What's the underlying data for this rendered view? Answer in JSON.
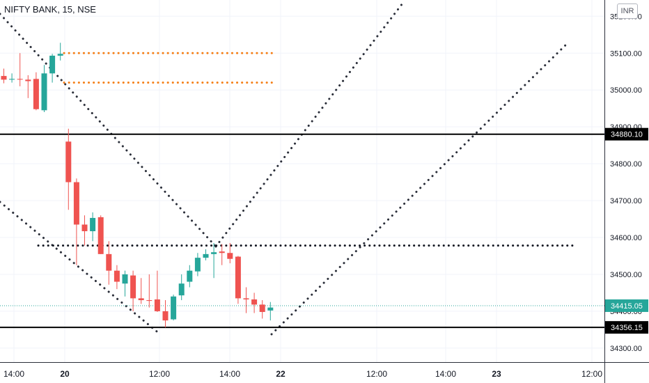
{
  "symbol_title": "NIFTY BANK, 15, NSE",
  "currency": "INR",
  "chart_data": {
    "type": "candlestick",
    "title": "NIFTY BANK, 15, NSE",
    "y_ticks": [
      34300,
      34400,
      34500,
      34600,
      34700,
      34800,
      34900,
      35000,
      35100,
      35200
    ],
    "y_tick_labels": [
      "34300.00",
      "34400.00",
      "34500.00",
      "34600.00",
      "34700.00",
      "34800.00",
      "34900.00",
      "35000.00",
      "35100.00",
      "35200.00"
    ],
    "ylim": [
      34262,
      35244
    ],
    "x_tick_labels": [
      "14:00",
      "20",
      "12:00",
      "14:00",
      "22",
      "12:00",
      "14:00",
      "23",
      "12:00"
    ],
    "candles": [
      {
        "o": 35038,
        "h": 35058,
        "l": 35018,
        "c": 35028
      },
      {
        "o": 35028,
        "h": 35045,
        "l": 35020,
        "c": 35030
      },
      {
        "o": 35030,
        "h": 35100,
        "l": 35010,
        "c": 35028
      },
      {
        "o": 35028,
        "h": 35040,
        "l": 34978,
        "c": 35024
      },
      {
        "o": 35030,
        "h": 35048,
        "l": 34945,
        "c": 34948
      },
      {
        "o": 34945,
        "h": 35068,
        "l": 34940,
        "c": 35045
      },
      {
        "o": 35045,
        "h": 35098,
        "l": 35020,
        "c": 35093
      },
      {
        "o": 35093,
        "h": 35128,
        "l": 35080,
        "c": 35098
      },
      {
        "o": 34860,
        "h": 34895,
        "l": 34675,
        "c": 34750
      },
      {
        "o": 34750,
        "h": 34760,
        "l": 34525,
        "c": 34635
      },
      {
        "o": 34635,
        "h": 34660,
        "l": 34578,
        "c": 34617
      },
      {
        "o": 34617,
        "h": 34668,
        "l": 34590,
        "c": 34653
      },
      {
        "o": 34655,
        "h": 34660,
        "l": 34555,
        "c": 34555
      },
      {
        "o": 34555,
        "h": 34590,
        "l": 34472,
        "c": 34510
      },
      {
        "o": 34510,
        "h": 34525,
        "l": 34460,
        "c": 34480
      },
      {
        "o": 34475,
        "h": 34510,
        "l": 34440,
        "c": 34500
      },
      {
        "o": 34497,
        "h": 34510,
        "l": 34400,
        "c": 34435
      },
      {
        "o": 34435,
        "h": 34490,
        "l": 34420,
        "c": 34430
      },
      {
        "o": 34430,
        "h": 34500,
        "l": 34410,
        "c": 34428
      },
      {
        "o": 34432,
        "h": 34510,
        "l": 34398,
        "c": 34400
      },
      {
        "o": 34400,
        "h": 34430,
        "l": 34356,
        "c": 34375
      },
      {
        "o": 34378,
        "h": 34445,
        "l": 34375,
        "c": 34440
      },
      {
        "o": 34443,
        "h": 34500,
        "l": 34430,
        "c": 34475
      },
      {
        "o": 34480,
        "h": 34525,
        "l": 34465,
        "c": 34510
      },
      {
        "o": 34508,
        "h": 34558,
        "l": 34495,
        "c": 34545
      },
      {
        "o": 34545,
        "h": 34568,
        "l": 34538,
        "c": 34555
      },
      {
        "o": 34555,
        "h": 34585,
        "l": 34490,
        "c": 34560
      },
      {
        "o": 34562,
        "h": 34582,
        "l": 34525,
        "c": 34558
      },
      {
        "o": 34558,
        "h": 34585,
        "l": 34530,
        "c": 34542
      },
      {
        "o": 34548,
        "h": 34550,
        "l": 34420,
        "c": 34435
      },
      {
        "o": 34435,
        "h": 34465,
        "l": 34395,
        "c": 34432
      },
      {
        "o": 34432,
        "h": 34450,
        "l": 34395,
        "c": 34418
      },
      {
        "o": 34418,
        "h": 34430,
        "l": 34380,
        "c": 34398
      },
      {
        "o": 34402,
        "h": 34425,
        "l": 34375,
        "c": 34410
      }
    ],
    "horizontal_lines": [
      {
        "value": 34880.1,
        "label": "34880.10"
      },
      {
        "value": 34356.15,
        "label": "34356.15"
      }
    ],
    "current_price": {
      "value": 34415.05,
      "label": "34415.05"
    },
    "dotted_levels": [
      {
        "value": 35100,
        "color": "#f57f17"
      },
      {
        "value": 35020,
        "color": "#f57f17"
      },
      {
        "value": 34578,
        "color": "#131722"
      }
    ],
    "colors": {
      "up": "#26a69a",
      "down": "#ef5350",
      "line": "#000000",
      "current": "#26a69a",
      "grid": "#f0f3fa"
    },
    "grid": true
  }
}
